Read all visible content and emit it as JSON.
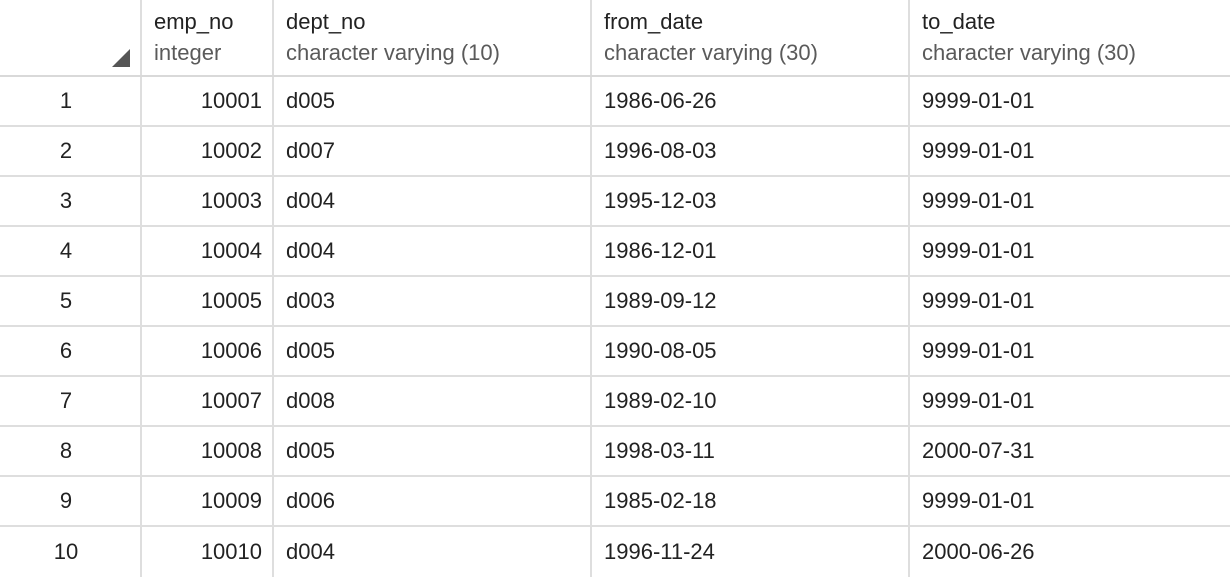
{
  "columns": [
    {
      "name": "emp_no",
      "type": "integer"
    },
    {
      "name": "dept_no",
      "type": "character varying (10)"
    },
    {
      "name": "from_date",
      "type": "character varying (30)"
    },
    {
      "name": "to_date",
      "type": "character varying (30)"
    }
  ],
  "rows": [
    {
      "idx": "1",
      "emp_no": "10001",
      "dept_no": "d005",
      "from_date": "1986-06-26",
      "to_date": "9999-01-01"
    },
    {
      "idx": "2",
      "emp_no": "10002",
      "dept_no": "d007",
      "from_date": "1996-08-03",
      "to_date": "9999-01-01"
    },
    {
      "idx": "3",
      "emp_no": "10003",
      "dept_no": "d004",
      "from_date": "1995-12-03",
      "to_date": "9999-01-01"
    },
    {
      "idx": "4",
      "emp_no": "10004",
      "dept_no": "d004",
      "from_date": "1986-12-01",
      "to_date": "9999-01-01"
    },
    {
      "idx": "5",
      "emp_no": "10005",
      "dept_no": "d003",
      "from_date": "1989-09-12",
      "to_date": "9999-01-01"
    },
    {
      "idx": "6",
      "emp_no": "10006",
      "dept_no": "d005",
      "from_date": "1990-08-05",
      "to_date": "9999-01-01"
    },
    {
      "idx": "7",
      "emp_no": "10007",
      "dept_no": "d008",
      "from_date": "1989-02-10",
      "to_date": "9999-01-01"
    },
    {
      "idx": "8",
      "emp_no": "10008",
      "dept_no": "d005",
      "from_date": "1998-03-11",
      "to_date": "2000-07-31"
    },
    {
      "idx": "9",
      "emp_no": "10009",
      "dept_no": "d006",
      "from_date": "1985-02-18",
      "to_date": "9999-01-01"
    },
    {
      "idx": "10",
      "emp_no": "10010",
      "dept_no": "d004",
      "from_date": "1996-11-24",
      "to_date": "2000-06-26"
    }
  ]
}
